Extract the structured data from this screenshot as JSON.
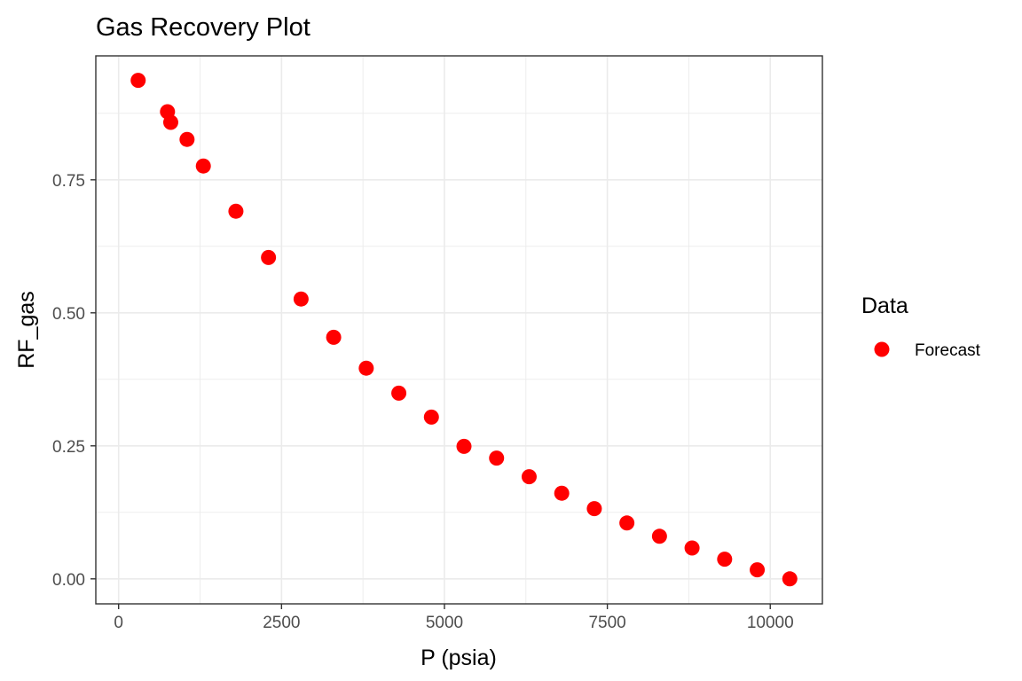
{
  "chart_data": {
    "type": "scatter",
    "title": "Gas Recovery Plot",
    "xlabel": "P (psia)",
    "ylabel": "RF_gas",
    "xlim": [
      -350,
      10800
    ],
    "ylim": [
      -0.047,
      0.983
    ],
    "x_ticks": [
      0,
      2500,
      5000,
      7500,
      10000
    ],
    "x_tick_labels": [
      "0",
      "2500",
      "5000",
      "7500",
      "10000"
    ],
    "y_ticks": [
      0.0,
      0.25,
      0.5,
      0.75
    ],
    "y_tick_labels": [
      "0.00",
      "0.25",
      "0.50",
      "0.75"
    ],
    "grid": true,
    "legend": {
      "title": "Data",
      "position": "right"
    },
    "series": [
      {
        "name": "Forecast",
        "color": "#ff0000",
        "points": [
          {
            "x": 300,
            "y": 0.937
          },
          {
            "x": 750,
            "y": 0.878
          },
          {
            "x": 800,
            "y": 0.858
          },
          {
            "x": 1050,
            "y": 0.826
          },
          {
            "x": 1300,
            "y": 0.776
          },
          {
            "x": 1800,
            "y": 0.691
          },
          {
            "x": 2300,
            "y": 0.604
          },
          {
            "x": 2800,
            "y": 0.526
          },
          {
            "x": 3300,
            "y": 0.454
          },
          {
            "x": 3800,
            "y": 0.396
          },
          {
            "x": 4300,
            "y": 0.349
          },
          {
            "x": 4800,
            "y": 0.304
          },
          {
            "x": 5300,
            "y": 0.249
          },
          {
            "x": 5800,
            "y": 0.227
          },
          {
            "x": 6300,
            "y": 0.192
          },
          {
            "x": 6800,
            "y": 0.161
          },
          {
            "x": 7300,
            "y": 0.132
          },
          {
            "x": 7800,
            "y": 0.105
          },
          {
            "x": 8300,
            "y": 0.08
          },
          {
            "x": 8800,
            "y": 0.058
          },
          {
            "x": 9300,
            "y": 0.037
          },
          {
            "x": 9800,
            "y": 0.017
          },
          {
            "x": 10300,
            "y": 0.0
          }
        ]
      }
    ]
  }
}
